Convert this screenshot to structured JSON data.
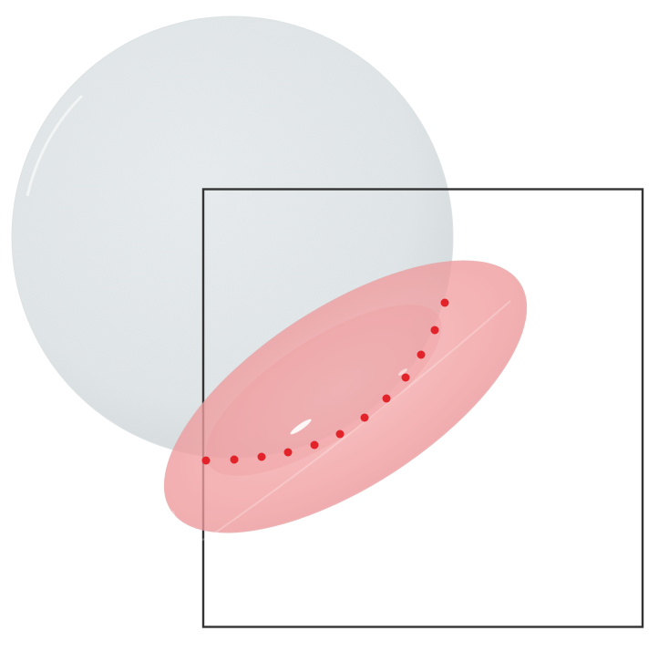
{
  "scene": {
    "background": "#ffffff",
    "sphere": {
      "fill": "#e6eaec",
      "edge": "#d9dee1",
      "texture": "speckled"
    },
    "frame": {
      "stroke": "#333333"
    },
    "ellipsoid": {
      "fill": "#f3a1a2",
      "edge": "#e89092",
      "opacity": 0.78
    },
    "intersection_curve": {
      "color": "#e2232a",
      "style": "dotted",
      "dot_count": 11
    }
  }
}
